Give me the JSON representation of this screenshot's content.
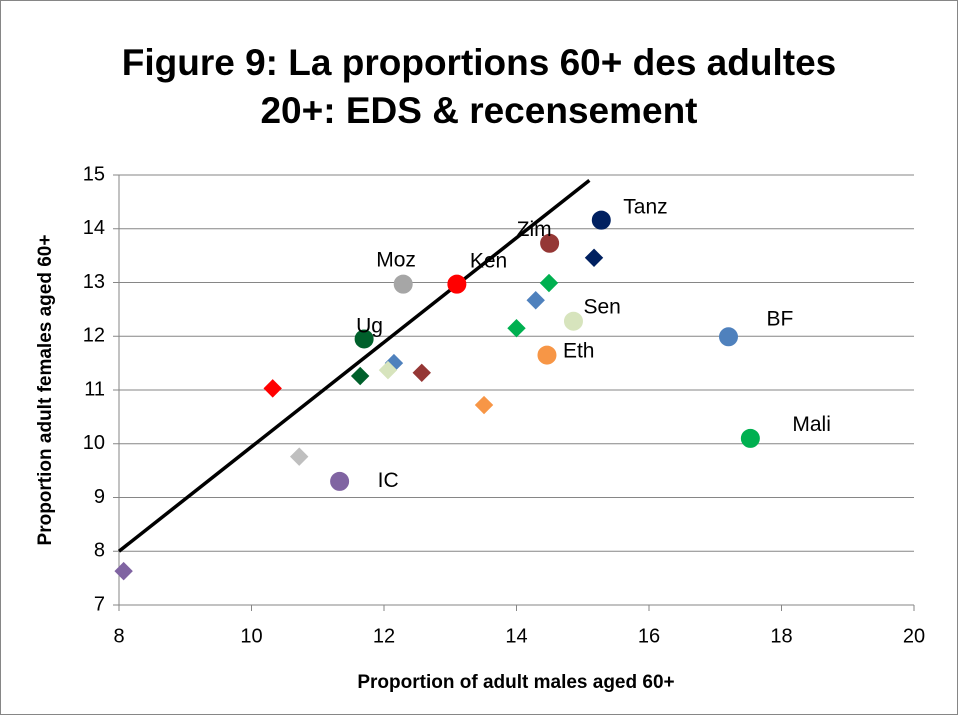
{
  "chart_data": {
    "type": "scatter",
    "title": [
      "Figure 9:  La proportions 60+ des adultes",
      "20+: EDS & recensement"
    ],
    "xlabel": "Proportion of adult males aged 60+",
    "ylabel": "Proportion adult females aged 60+",
    "xlim": [
      8,
      20
    ],
    "xticks": [
      8,
      10,
      12,
      14,
      16,
      18,
      20
    ],
    "ylim": [
      7,
      15
    ],
    "yticks": [
      7,
      8,
      9,
      10,
      11,
      12,
      13,
      14,
      15
    ],
    "grid": true,
    "series": [
      {
        "marker": "circle",
        "x": [
          15.28,
          14.5,
          12.29,
          13.1,
          14.86,
          14.46,
          17.2,
          17.53,
          11.7,
          11.33
        ],
        "y": [
          14.16,
          13.73,
          12.97,
          12.97,
          12.28,
          11.65,
          11.99,
          10.1,
          11.95,
          9.3
        ],
        "colors": [
          "#002060",
          "#953735",
          "#a6a6a6",
          "#ff0000",
          "#d7e4bd",
          "#f79646",
          "#4f81bd",
          "#00b050",
          "#00602b",
          "#8064a2"
        ],
        "labels": [
          "Tanz",
          "Zim",
          "Moz",
          "Ken",
          "Sen",
          "Eth",
          "BF",
          "Mali",
          "Ug",
          "IC"
        ]
      },
      {
        "marker": "diamond",
        "x": [
          15.17,
          14.49,
          14.29,
          14.0,
          12.15,
          12.06,
          12.57,
          11.64,
          10.32,
          13.51,
          10.72,
          8.07
        ],
        "y": [
          13.46,
          12.99,
          12.67,
          12.15,
          11.5,
          11.37,
          11.32,
          11.26,
          11.03,
          10.72,
          9.76,
          7.63
        ],
        "colors": [
          "#002060",
          "#00b050",
          "#4f81bd",
          "#00b050",
          "#4f81bd",
          "#d7e4bd",
          "#953735",
          "#00602b",
          "#ff0000",
          "#f79646",
          "#bfbfbf",
          "#8064a2"
        ]
      }
    ],
    "line": {
      "x": [
        8,
        15.1
      ],
      "y": [
        8,
        14.9
      ],
      "color": "#000000"
    }
  }
}
